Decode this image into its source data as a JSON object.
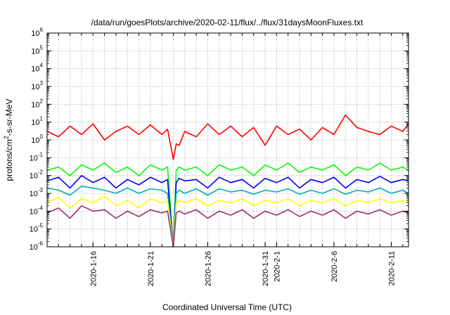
{
  "chart_data": {
    "type": "line",
    "title": "/data/run/goesPlots/archive/2020-02-11/flux/../flux/31daysMoonFluxes.txt",
    "xlabel": "Coordinated Universal Time (UTC)",
    "ylabel": "protons/cm²-s-sr-MeV",
    "yscale": "log",
    "ylim": [
      1e-06,
      1000000
    ],
    "xlim": [
      "2020-01-12",
      "2020-02-12 12:00"
    ],
    "grid": true,
    "legend": "none",
    "x_tick_labels": [
      "2020-1-16",
      "2020-1-21",
      "2020-1-26",
      "2020-1-31",
      "2020-2-1",
      "2020-2-6",
      "2020-2-11"
    ],
    "x_tick_dates": [
      "2020-01-16",
      "2020-01-21",
      "2020-01-26",
      "2020-01-31",
      "2020-02-01",
      "2020-02-06",
      "2020-02-11"
    ],
    "y_tick_labels": [
      {
        "base": "10",
        "exp": "-6"
      },
      {
        "base": "10",
        "exp": "-5"
      },
      {
        "base": "10",
        "exp": "-4"
      },
      {
        "base": "10",
        "exp": "-3"
      },
      {
        "base": "10",
        "exp": "-2"
      },
      {
        "base": "10",
        "exp": "-1"
      },
      {
        "base": "10",
        "exp": "0"
      },
      {
        "base": "10",
        "exp": "1"
      },
      {
        "base": "10",
        "exp": "2"
      },
      {
        "base": "10",
        "exp": "3"
      },
      {
        "base": "10",
        "exp": "4"
      },
      {
        "base": "10",
        "exp": "5"
      },
      {
        "base": "10",
        "exp": "6"
      }
    ],
    "x_dates": [
      "2020-01-12",
      "2020-01-13",
      "2020-01-14",
      "2020-01-15",
      "2020-01-16",
      "2020-01-17",
      "2020-01-18",
      "2020-01-19",
      "2020-01-20",
      "2020-01-21",
      "2020-01-22",
      "2020-01-22 12:00",
      "2020-01-23",
      "2020-01-23 06:00",
      "2020-01-23 12:00",
      "2020-01-24",
      "2020-01-25",
      "2020-01-26",
      "2020-01-27",
      "2020-01-28",
      "2020-01-29",
      "2020-01-30",
      "2020-01-31",
      "2020-02-01",
      "2020-02-02",
      "2020-02-03",
      "2020-02-04",
      "2020-02-05",
      "2020-02-06",
      "2020-02-07",
      "2020-02-08",
      "2020-02-09",
      "2020-02-10",
      "2020-02-11",
      "2020-02-12",
      "2020-02-12 12:00"
    ],
    "series": [
      {
        "color": "#ff0000",
        "values": [
          3,
          1.5,
          6,
          2,
          8,
          1,
          3,
          6,
          2,
          7,
          2,
          4,
          0.08,
          0.6,
          0.5,
          3,
          1.5,
          8,
          2,
          6,
          1.5,
          5,
          0.5,
          6,
          2,
          4,
          1,
          5,
          2,
          25,
          5,
          3,
          2,
          6,
          3,
          8
        ]
      },
      {
        "color": "#00ff00",
        "values": [
          0.02,
          0.03,
          0.01,
          0.04,
          0.02,
          0.05,
          0.015,
          0.03,
          0.01,
          0.04,
          0.02,
          0.03,
          5e-07,
          0.02,
          0.03,
          0.02,
          0.03,
          0.01,
          0.04,
          0.02,
          0.03,
          0.01,
          0.04,
          0.02,
          0.05,
          0.015,
          0.03,
          0.02,
          0.04,
          0.01,
          0.03,
          0.02,
          0.05,
          0.02,
          0.03,
          0.02
        ]
      },
      {
        "color": "#0000ff",
        "values": [
          0.005,
          0.008,
          0.002,
          0.01,
          0.004,
          0.008,
          0.002,
          0.006,
          0.003,
          0.008,
          0.004,
          0.006,
          5e-07,
          0.004,
          0.007,
          0.005,
          0.006,
          0.002,
          0.008,
          0.004,
          0.006,
          0.002,
          0.007,
          0.004,
          0.008,
          0.002,
          0.006,
          0.004,
          0.008,
          0.002,
          0.006,
          0.004,
          0.009,
          0.004,
          0.006,
          0.005
        ]
      },
      {
        "color": "#00b0b0",
        "values": [
          0.002,
          0.0015,
          0.0008,
          0.0025,
          0.002,
          0.0015,
          0.001,
          0.002,
          0.001,
          0.0018,
          0.0015,
          0.001,
          5e-07,
          0.001,
          0.0015,
          0.001,
          0.0018,
          0.0008,
          0.0018,
          0.0012,
          0.0015,
          0.0009,
          0.0015,
          0.0012,
          0.0018,
          0.0009,
          0.0015,
          0.001,
          0.0018,
          0.0009,
          0.0015,
          0.0012,
          0.002,
          0.001,
          0.0015,
          0.001
        ]
      },
      {
        "color": "#ffff00",
        "values": [
          0.0003,
          0.0006,
          0.00015,
          0.0005,
          0.0003,
          0.0007,
          0.0002,
          0.0004,
          0.00015,
          0.0005,
          0.0003,
          0.0004,
          5e-07,
          0.0003,
          0.0004,
          0.0003,
          0.0005,
          0.0002,
          0.0004,
          0.0003,
          0.0005,
          0.0002,
          0.0004,
          0.0003,
          0.0005,
          0.0002,
          0.0004,
          0.0003,
          0.0005,
          0.0002,
          0.0004,
          0.0003,
          0.0005,
          0.0003,
          0.0004,
          0.0003
        ]
      },
      {
        "color": "#9b3070",
        "values": [
          8e-05,
          0.00015,
          4e-05,
          0.0002,
          0.0001,
          0.00012,
          4e-05,
          0.0001,
          5e-05,
          0.00012,
          8e-05,
          0.0001,
          5e-07,
          8e-05,
          0.0001,
          7e-05,
          0.00012,
          4e-05,
          0.0001,
          6e-05,
          0.00012,
          4e-05,
          0.0001,
          6e-05,
          0.00012,
          5e-05,
          0.0001,
          6e-05,
          0.00012,
          4e-05,
          0.0001,
          7e-05,
          0.00012,
          6e-05,
          0.0001,
          8e-05
        ]
      }
    ]
  }
}
